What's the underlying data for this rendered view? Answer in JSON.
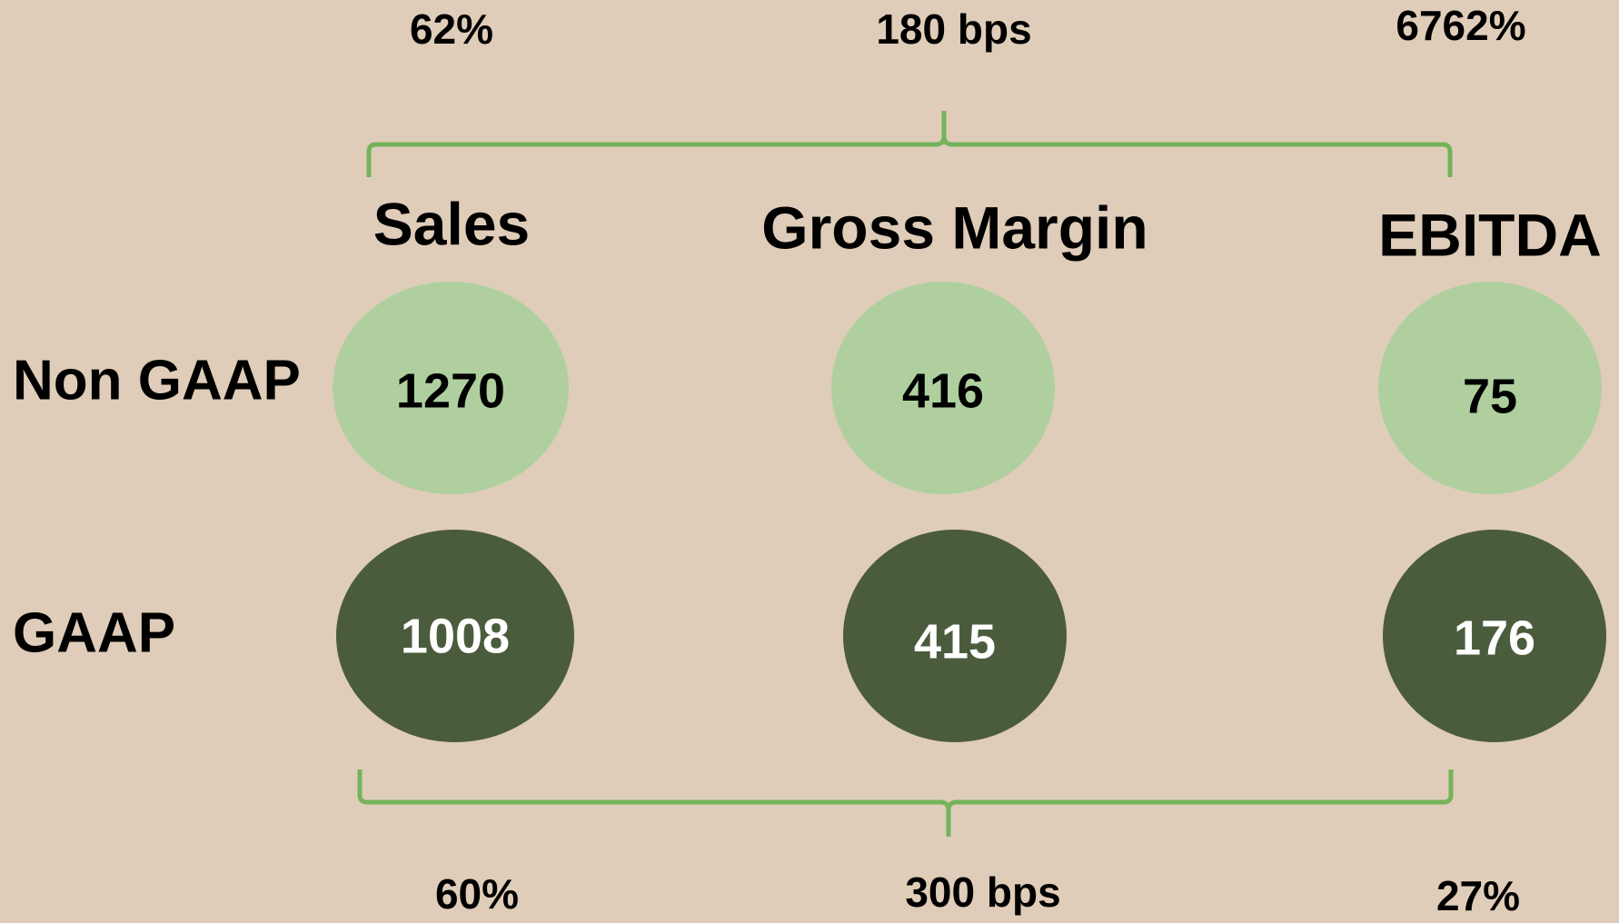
{
  "top_notes": [
    "62%",
    "180 bps",
    "6762%"
  ],
  "columns": [
    "Sales",
    "Gross Margin",
    "EBITDA"
  ],
  "rows": [
    {
      "label": "Non GAAP",
      "values": [
        1270,
        416,
        75
      ]
    },
    {
      "label": "GAAP",
      "values": [
        1008,
        415,
        176
      ]
    }
  ],
  "bottom_notes": [
    "60%",
    "300 bps",
    "27%"
  ]
}
